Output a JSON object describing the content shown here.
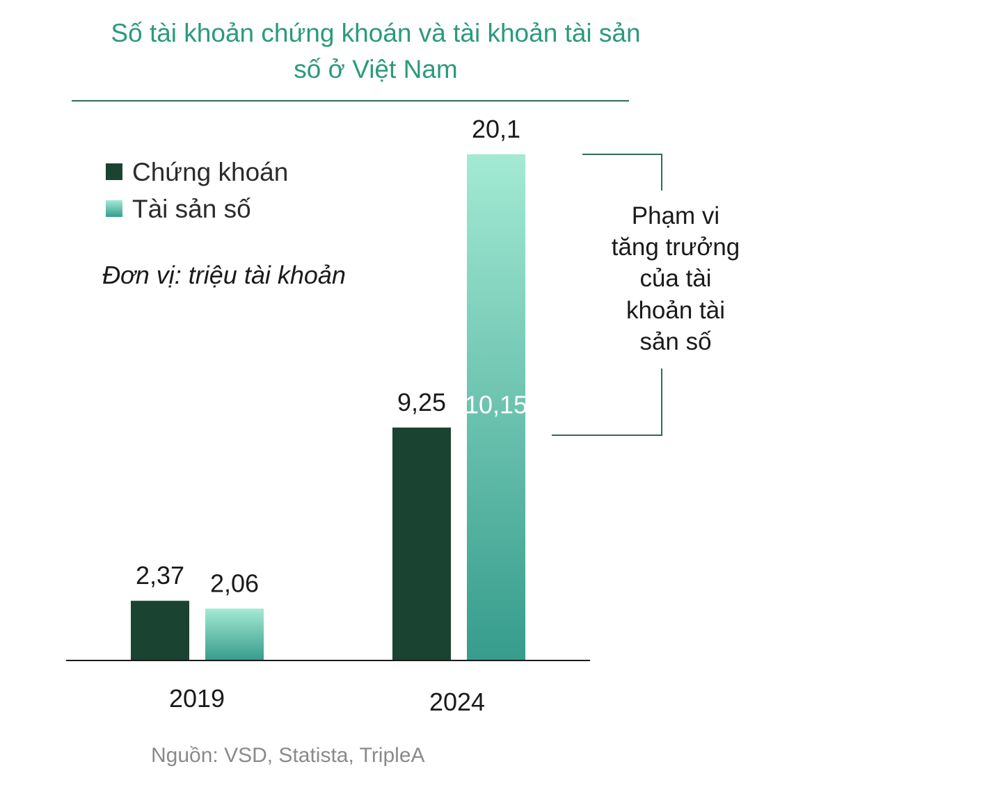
{
  "chart_data": {
    "type": "bar",
    "title_lines": [
      "Số tài khoản chứng khoán và tài khoản tài sản",
      "số ở Việt Nam"
    ],
    "unit": "Đơn vị: triệu tài khoản",
    "categories": [
      "2019",
      "2024"
    ],
    "series": [
      {
        "name": "Chứng khoán",
        "values": [
          2.37,
          9.25
        ],
        "labels": [
          "2,37",
          "9,25"
        ],
        "color": "#1b4332"
      },
      {
        "name": "Tài sản số",
        "values": [
          2.06,
          20.1
        ],
        "labels": [
          "2,06",
          "20,1"
        ],
        "color_top": "#a3ead3",
        "color_bottom": "#369c8c"
      }
    ],
    "inner_label": {
      "text": "10,15",
      "value": 10.15
    },
    "annotation": {
      "lines": [
        "Phạm vi",
        "tăng trưởng",
        "của tài",
        "khoản tài",
        "sản số"
      ],
      "color": "#2f6b57"
    },
    "source": "Nguồn: VSD, Statista, TripleA",
    "ylim": [
      0,
      20.1
    ],
    "colors": {
      "title": "#2a9a7c",
      "rule": "#2f6b57",
      "axis": "#1a1a1a"
    }
  }
}
